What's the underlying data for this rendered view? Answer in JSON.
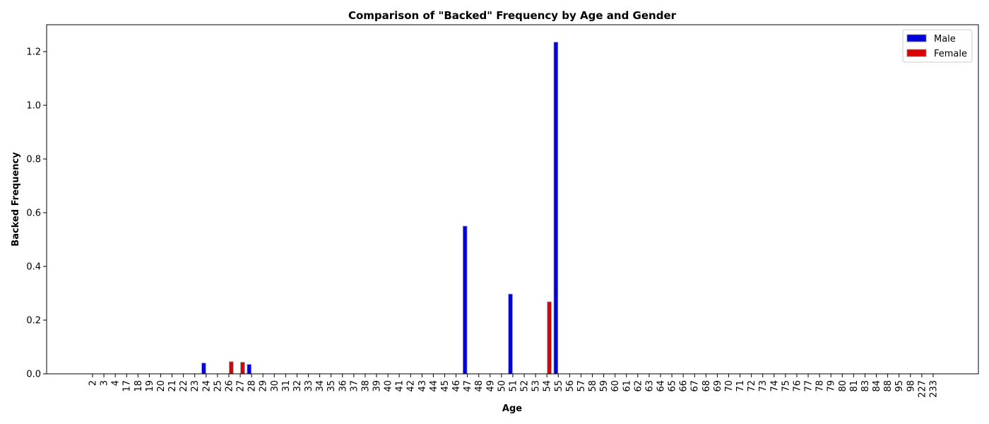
{
  "chart_data": {
    "type": "bar",
    "title": "Comparison of \"Backed\" Frequency by Age and Gender",
    "xlabel": "Age",
    "ylabel": "Backed Frequency",
    "ylim": [
      0,
      1.3
    ],
    "yticks": [
      0.0,
      0.2,
      0.4,
      0.6,
      0.8,
      1.0,
      1.2
    ],
    "ytick_labels": [
      "0.0",
      "0.2",
      "0.4",
      "0.6",
      "0.8",
      "1.0",
      "1.2"
    ],
    "legend_position": "top-right",
    "grid": false,
    "categories": [
      "2",
      "3",
      "4",
      "17",
      "18",
      "19",
      "20",
      "21",
      "22",
      "23",
      "24",
      "25",
      "26",
      "27",
      "28",
      "29",
      "30",
      "31",
      "32",
      "33",
      "34",
      "35",
      "36",
      "37",
      "38",
      "39",
      "40",
      "41",
      "42",
      "43",
      "44",
      "45",
      "46",
      "47",
      "48",
      "49",
      "50",
      "51",
      "52",
      "53",
      "54",
      "55",
      "56",
      "57",
      "58",
      "59",
      "60",
      "61",
      "62",
      "63",
      "64",
      "65",
      "66",
      "67",
      "68",
      "69",
      "70",
      "71",
      "72",
      "73",
      "74",
      "75",
      "76",
      "77",
      "78",
      "79",
      "80",
      "81",
      "83",
      "84",
      "88",
      "95",
      "98",
      "227",
      "233"
    ],
    "series": [
      {
        "name": "Male",
        "color": "#0000dd",
        "values": [
          0,
          0,
          0,
          0,
          0,
          0,
          0,
          0,
          0,
          0,
          0.04,
          0,
          0,
          0,
          0.035,
          0,
          0,
          0,
          0,
          0,
          0,
          0,
          0,
          0,
          0,
          0,
          0,
          0,
          0,
          0,
          0,
          0,
          0,
          0.55,
          0,
          0,
          0,
          0.297,
          0,
          0,
          0,
          1.235,
          0,
          0,
          0,
          0,
          0,
          0,
          0,
          0,
          0,
          0,
          0,
          0,
          0,
          0,
          0,
          0,
          0,
          0,
          0,
          0,
          0,
          0,
          0,
          0,
          0,
          0,
          0,
          0,
          0,
          0,
          0,
          0,
          0
        ]
      },
      {
        "name": "Female",
        "color": "#dd0000",
        "values": [
          0,
          0,
          0,
          0,
          0,
          0,
          0,
          0,
          0,
          0,
          0,
          0,
          0.045,
          0.043,
          0,
          0,
          0,
          0,
          0,
          0,
          0,
          0,
          0,
          0,
          0,
          0,
          0,
          0,
          0,
          0,
          0,
          0,
          0,
          0,
          0,
          0,
          0,
          0,
          0,
          0,
          0.268,
          0,
          0,
          0,
          0,
          0,
          0,
          0,
          0,
          0,
          0,
          0,
          0,
          0,
          0,
          0,
          0,
          0,
          0,
          0,
          0,
          0,
          0,
          0,
          0,
          0,
          0,
          0,
          0,
          0,
          0,
          0,
          0,
          0,
          0
        ]
      }
    ]
  }
}
